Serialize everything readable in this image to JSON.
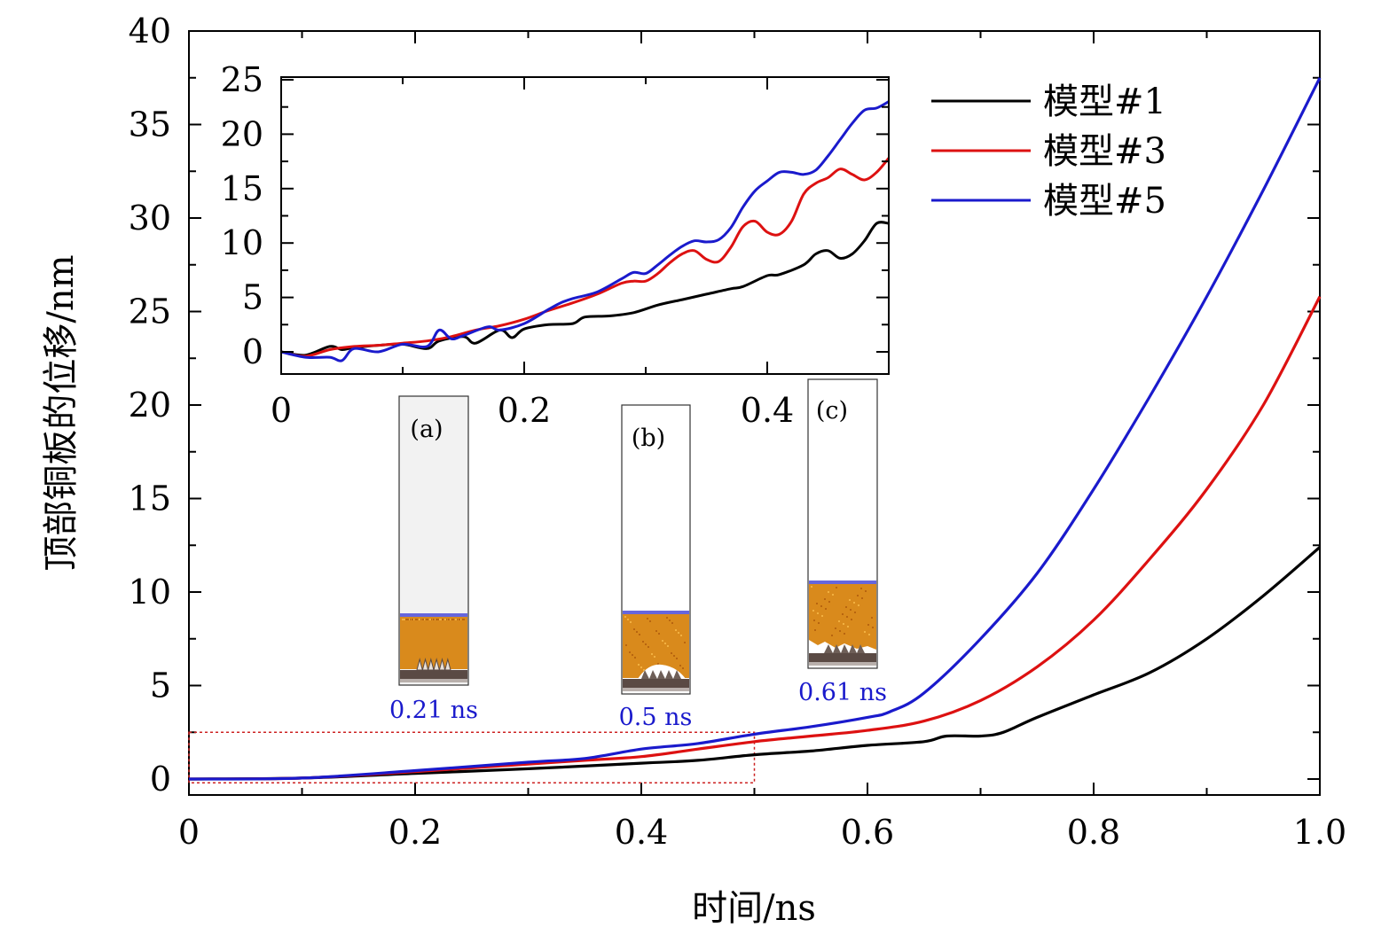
{
  "chart_data": {
    "type": "line",
    "title": "",
    "xlabel": "时间/ns",
    "ylabel": "顶部铜板的位移/nm",
    "xlim": [
      0,
      1.0
    ],
    "ylim": [
      0,
      40
    ],
    "xticks": [
      "0",
      "0.2",
      "0.4",
      "0.6",
      "0.8",
      "1.0"
    ],
    "yticks": [
      "0",
      "5",
      "10",
      "15",
      "20",
      "25",
      "30",
      "35",
      "40"
    ],
    "legend_position": "top-right",
    "series": [
      {
        "name": "模型#1",
        "color": "#000000",
        "x": [
          0,
          0.1,
          0.2,
          0.3,
          0.4,
          0.45,
          0.5,
          0.55,
          0.6,
          0.65,
          0.67,
          0.7,
          0.72,
          0.75,
          0.8,
          0.85,
          0.9,
          0.95,
          1.0
        ],
        "y": [
          0,
          0.05,
          0.3,
          0.55,
          0.85,
          1.0,
          1.3,
          1.5,
          1.8,
          2.0,
          2.3,
          2.3,
          2.5,
          3.3,
          4.5,
          5.7,
          7.5,
          9.8,
          12.4
        ]
      },
      {
        "name": "模型#3",
        "color": "#dd1111",
        "x": [
          0,
          0.1,
          0.2,
          0.3,
          0.35,
          0.4,
          0.45,
          0.5,
          0.55,
          0.6,
          0.65,
          0.7,
          0.75,
          0.8,
          0.85,
          0.9,
          0.95,
          1.0
        ],
        "y": [
          0,
          0.05,
          0.4,
          0.8,
          1.0,
          1.2,
          1.6,
          2.0,
          2.3,
          2.6,
          3.1,
          4.2,
          6.0,
          8.5,
          11.8,
          15.5,
          20.0,
          25.8
        ]
      },
      {
        "name": "模型#5",
        "color": "#1a1acc",
        "x": [
          0,
          0.1,
          0.2,
          0.3,
          0.35,
          0.4,
          0.45,
          0.5,
          0.55,
          0.6,
          0.62,
          0.65,
          0.7,
          0.75,
          0.8,
          0.85,
          0.9,
          0.95,
          1.0
        ],
        "y": [
          0,
          0.05,
          0.45,
          0.9,
          1.1,
          1.6,
          1.9,
          2.4,
          2.8,
          3.3,
          3.6,
          4.6,
          7.5,
          11.0,
          15.5,
          20.5,
          25.8,
          31.5,
          37.5
        ]
      }
    ],
    "zoom_box": {
      "x": [
        0,
        0.5
      ],
      "y": [
        -0.2,
        2.5
      ],
      "color": "#cc2222"
    },
    "inset": {
      "xlim": [
        0,
        0.5
      ],
      "ylim": [
        -2,
        25
      ],
      "xticks": [
        "0",
        "0.2",
        "0.4"
      ],
      "yticks": [
        "0",
        "5",
        "10",
        "15",
        "20",
        "25"
      ],
      "series": [
        {
          "name": "模型#1",
          "color": "#000000",
          "x": [
            0,
            0.02,
            0.04,
            0.05,
            0.06,
            0.08,
            0.1,
            0.12,
            0.13,
            0.15,
            0.16,
            0.18,
            0.19,
            0.2,
            0.22,
            0.24,
            0.25,
            0.27,
            0.29,
            0.31,
            0.33,
            0.35,
            0.37,
            0.38,
            0.4,
            0.41,
            0.43,
            0.44,
            0.45,
            0.46,
            0.47,
            0.48,
            0.49,
            0.5
          ],
          "y": [
            0,
            -0.3,
            0.5,
            0.2,
            0.4,
            0.6,
            0.7,
            0.3,
            1.0,
            1.4,
            0.8,
            2.0,
            1.3,
            2.1,
            2.5,
            2.6,
            3.2,
            3.3,
            3.6,
            4.3,
            4.8,
            5.3,
            5.8,
            6.0,
            7.0,
            7.1,
            8.0,
            9.0,
            9.3,
            8.6,
            9.0,
            10.2,
            11.8,
            11.8
          ]
        },
        {
          "name": "模型#3",
          "color": "#dd1111",
          "x": [
            0,
            0.02,
            0.04,
            0.06,
            0.08,
            0.1,
            0.12,
            0.14,
            0.16,
            0.18,
            0.2,
            0.22,
            0.24,
            0.26,
            0.28,
            0.29,
            0.3,
            0.31,
            0.32,
            0.33,
            0.34,
            0.35,
            0.36,
            0.37,
            0.38,
            0.39,
            0.4,
            0.41,
            0.42,
            0.43,
            0.44,
            0.45,
            0.46,
            0.47,
            0.48,
            0.49,
            0.5
          ],
          "y": [
            0,
            -0.4,
            0.2,
            0.5,
            0.6,
            0.8,
            1.0,
            1.4,
            2.0,
            2.4,
            3.0,
            3.8,
            4.5,
            5.3,
            6.3,
            6.5,
            6.5,
            7.2,
            8.2,
            9.0,
            9.3,
            8.5,
            8.3,
            9.6,
            11.5,
            12.0,
            11.0,
            10.8,
            12.0,
            14.5,
            15.5,
            16.0,
            16.8,
            16.3,
            15.8,
            16.5,
            17.8
          ]
        },
        {
          "name": "模型#5",
          "color": "#1a1acc",
          "x": [
            0,
            0.02,
            0.04,
            0.05,
            0.06,
            0.08,
            0.1,
            0.12,
            0.13,
            0.14,
            0.15,
            0.17,
            0.18,
            0.2,
            0.22,
            0.23,
            0.24,
            0.26,
            0.28,
            0.29,
            0.3,
            0.31,
            0.32,
            0.33,
            0.34,
            0.35,
            0.36,
            0.37,
            0.38,
            0.39,
            0.4,
            0.41,
            0.42,
            0.43,
            0.44,
            0.45,
            0.46,
            0.47,
            0.48,
            0.49,
            0.5
          ],
          "y": [
            0,
            -0.5,
            -0.5,
            -0.8,
            0.3,
            0.0,
            0.7,
            0.5,
            2.0,
            1.2,
            1.5,
            2.3,
            2.0,
            2.6,
            3.9,
            4.5,
            4.9,
            5.5,
            6.7,
            7.3,
            7.2,
            8.0,
            8.9,
            9.7,
            10.2,
            10.1,
            10.3,
            11.4,
            13.3,
            14.8,
            15.7,
            16.5,
            16.5,
            16.3,
            16.7,
            18.0,
            19.5,
            21.0,
            22.2,
            22.4,
            23.0
          ]
        }
      ]
    },
    "snapshots": [
      {
        "letter": "(a)",
        "time": "0.21 ns"
      },
      {
        "letter": "(b)",
        "time": "0.5 ns"
      },
      {
        "letter": "(c)",
        "time": "0.61 ns"
      }
    ]
  }
}
